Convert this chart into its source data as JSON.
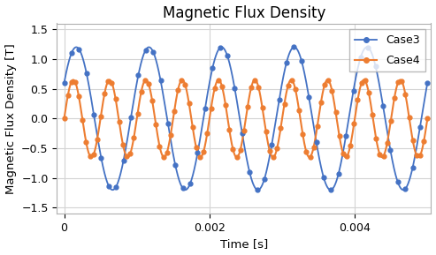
{
  "title": "Magnetic Flux Density",
  "xlabel": "Time [s]",
  "ylabel": "Magnetic Flux Density [T]",
  "ylim": [
    -1.6,
    1.6
  ],
  "xlim": [
    -0.0001,
    0.00505
  ],
  "xticks": [
    0,
    0.002,
    0.004
  ],
  "yticks": [
    -1.5,
    -1.0,
    -0.5,
    0,
    0.5,
    1.0,
    1.5
  ],
  "case3_amplitude": 1.2,
  "case3_frequency": 1000,
  "case3_phase": 0.5236,
  "case4_amplitude": 0.65,
  "case4_frequency": 2000,
  "case4_phase": 0.0,
  "case3_color": "#4472c4",
  "case4_color": "#ed7d31",
  "case3_label": "Case3",
  "case4_label": "Case4",
  "case3_n_markers": 50,
  "case4_n_markers": 100,
  "background_color": "#ffffff",
  "grid_color": "#d3d3d3",
  "title_fontsize": 12,
  "axis_label_fontsize": 9.5,
  "tick_fontsize": 9
}
